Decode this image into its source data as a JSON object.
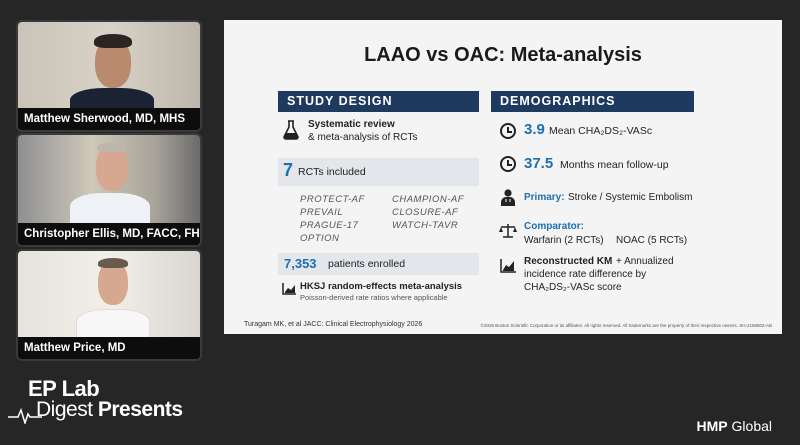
{
  "participants": [
    {
      "name": "Matthew Sherwood, MD, MHS"
    },
    {
      "name": "Christopher Ellis, MD, FACC, FHRS"
    },
    {
      "name": "Matthew Price, MD"
    }
  ],
  "slide": {
    "title": "LAAO vs OAC: Meta-analysis",
    "study_design": {
      "header": "STUDY DESIGN",
      "systematic_bold": "Systematic review",
      "systematic_rest": "& meta-analysis of RCTs",
      "rct_count": "7",
      "rct_label": "RCTs included",
      "trials_left": [
        "PROTECT-AF",
        "PREVAIL",
        "PRAGUE-17",
        "OPTION"
      ],
      "trials_right": [
        "CHAMPION-AF",
        "CLOSURE-AF",
        "WATCH-TAVR"
      ],
      "patients_count": "7,353",
      "patients_label": "patients enrolled",
      "hksj_title": "HKSJ random-effects meta-analysis",
      "hksj_sub": "Poisson-derived rate ratios where applicable"
    },
    "demographics": {
      "header": "DEMOGRAPHICS",
      "chads_value": "3.9",
      "chads_label": "Mean CHA₂DS₂-VASc",
      "followup_value": "37.5",
      "followup_label": "Months mean follow-up",
      "primary_label": "Primary:",
      "primary_text": "Stroke / Systemic Embolism",
      "comparator_label": "Comparator:",
      "comparator_a": "Warfarin (2 RCTs)",
      "comparator_b": "NOAC (5 RCTs)",
      "km_bold": "Reconstructed KM",
      "km_rest_1": "+ Annualized",
      "km_rest_2": "incidence rate difference by",
      "km_rest_3": "CHA₂DS₂-VASc score"
    },
    "citation": "Turagam MK, et al   JACC: Clinical Electrophysiology 2026",
    "copyright": "©2026 Boston Scientific Corporation or its affiliates. All rights reserved. All trademarks are the property of their respective owners. SH-2156902-AB"
  },
  "branding": {
    "line1": "EP Lab",
    "line2_a": "Digest ",
    "line2_b": "Presents",
    "publisher_a": "HMP",
    "publisher_b": " Global"
  },
  "colors": {
    "header_bg": "#1e3a5f",
    "accent_blue": "#1d6fb0",
    "box_gray": "#e3e6ea"
  },
  "icons": [
    "flask-icon",
    "clock-icon",
    "clock-icon",
    "doctor-icon",
    "scale-icon",
    "chart-icon"
  ]
}
